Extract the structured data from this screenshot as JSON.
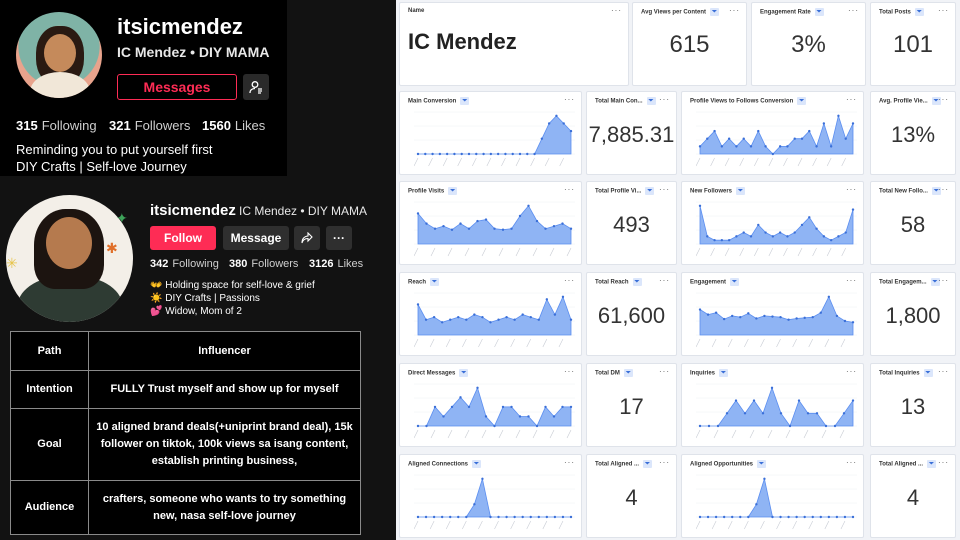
{
  "profile1": {
    "username": "itsicmendez",
    "display_name": "IC Mendez • DIY MAMA",
    "messages_label": "Messages",
    "stats": [
      {
        "count": "315",
        "label": "Following"
      },
      {
        "count": "321",
        "label": "Followers"
      },
      {
        "count": "1560",
        "label": "Likes"
      }
    ],
    "bio": [
      "Reminding you to put yourself first",
      "DIY Crafts | Self-love Journey"
    ],
    "accent": "#fe2c55"
  },
  "profile2": {
    "username": "itsicmendez",
    "display_name": "IC Mendez • DIY MAMA",
    "follow_label": "Follow",
    "message_label": "Message",
    "stats": [
      {
        "count": "342",
        "label": "Following"
      },
      {
        "count": "380",
        "label": "Followers"
      },
      {
        "count": "3126",
        "label": "Likes"
      }
    ],
    "bio": [
      "👐 Holding space for self-love & grief",
      "☀️ DIY Crafts | Passions",
      "💕 Widow, Mom of 2"
    ]
  },
  "path_table": [
    {
      "key": "Path",
      "value": "Influencer"
    },
    {
      "key": "Intention",
      "value": "FULLY Trust myself and show up for myself"
    },
    {
      "key": "Goal",
      "value": "10 aligned brand deals(+uniprint brand deal), 15k follower on tiktok, 100k views sa isang content, establish printing business,"
    },
    {
      "key": "Audience",
      "value": "crafters, someone who wants to try something new, nasa self-love journey"
    }
  ],
  "dashboard": {
    "name_card": {
      "title": "Name",
      "value": "IC Mendez"
    },
    "kpis": [
      {
        "title": "Avg Views per Content",
        "value": "615"
      },
      {
        "title": "Engagement Rate",
        "value": "3%"
      },
      {
        "title": "Total Posts",
        "value": "101"
      }
    ],
    "rows": [
      {
        "chart_title": "Main Conversion",
        "total_title": "Total Main Con...",
        "total_value": "7,885.31",
        "chart2_title": "Profile Views to Follows Conversion",
        "total2_title": "Avg. Profile Vie...",
        "total2_value": "13%"
      },
      {
        "chart_title": "Profile Visits",
        "total_title": "Total Profile Vi...",
        "total_value": "493",
        "chart2_title": "New Followers",
        "total2_title": "Total New Follo...",
        "total2_value": "58"
      },
      {
        "chart_title": "Reach",
        "total_title": "Total Reach",
        "total_value": "61,600",
        "chart2_title": "Engagement",
        "total2_title": "Total Engagem...",
        "total2_value": "1,800"
      },
      {
        "chart_title": "Direct Messages",
        "total_title": "Total DM",
        "total_value": "17",
        "chart2_title": "Inquiries",
        "total2_title": "Total Inquiries",
        "total2_value": "13"
      },
      {
        "chart_title": "Aligned Connections",
        "total_title": "Total Aligned ...",
        "total_value": "4",
        "chart2_title": "Aligned Opportunities",
        "total2_title": "Total Aligned ...",
        "total2_value": "4"
      }
    ]
  },
  "chart_data": [
    {
      "type": "area",
      "title": "Main Conversion",
      "values": [
        0,
        0,
        0,
        0,
        0,
        0,
        0,
        0,
        0,
        0,
        0,
        0,
        0,
        0,
        0,
        0,
        0,
        2,
        4,
        5,
        4,
        3
      ]
    },
    {
      "type": "area",
      "title": "Profile Views to Follows Conversion",
      "values": [
        1,
        2,
        3,
        1,
        2,
        1,
        2,
        1,
        3,
        1,
        0,
        1,
        1,
        2,
        2,
        3,
        1,
        4,
        1,
        5,
        2,
        4
      ]
    },
    {
      "type": "area",
      "title": "Profile Visits",
      "values": [
        60,
        40,
        30,
        35,
        28,
        40,
        30,
        45,
        48,
        30,
        28,
        30,
        55,
        75,
        45,
        30,
        35,
        40,
        30
      ]
    },
    {
      "type": "area",
      "title": "New Followers",
      "values": [
        10,
        2,
        1,
        1,
        1,
        2,
        3,
        2,
        5,
        3,
        2,
        3,
        2,
        3,
        5,
        7,
        4,
        2,
        1,
        2,
        3,
        9
      ]
    },
    {
      "type": "area",
      "title": "Reach",
      "values": [
        12000,
        6000,
        7000,
        5000,
        6000,
        7000,
        6000,
        8000,
        7000,
        5000,
        6000,
        7000,
        6000,
        8000,
        7000,
        6000,
        14000,
        8000,
        15000,
        6000
      ]
    },
    {
      "type": "area",
      "title": "Engagement",
      "values": [
        40,
        32,
        35,
        25,
        30,
        28,
        34,
        26,
        30,
        29,
        28,
        24,
        26,
        27,
        28,
        35,
        60,
        30,
        22,
        20
      ]
    },
    {
      "type": "area",
      "title": "Direct Messages",
      "values": [
        0,
        0,
        2,
        1,
        2,
        3,
        2,
        4,
        1,
        0,
        2,
        2,
        1,
        1,
        0,
        2,
        1,
        2,
        2
      ]
    },
    {
      "type": "area",
      "title": "Inquiries",
      "values": [
        0,
        0,
        0,
        1,
        2,
        1,
        2,
        1,
        3,
        1,
        0,
        2,
        1,
        1,
        0,
        0,
        1,
        2
      ]
    },
    {
      "type": "area",
      "title": "Aligned Connections",
      "values": [
        0,
        0,
        0,
        0,
        0,
        0,
        0,
        1,
        3,
        0,
        0,
        0,
        0,
        0,
        0,
        0,
        0,
        0,
        0,
        0
      ]
    },
    {
      "type": "area",
      "title": "Aligned Opportunities",
      "values": [
        0,
        0,
        0,
        0,
        0,
        0,
        0,
        1,
        3,
        0,
        0,
        0,
        0,
        0,
        0,
        0,
        0,
        0,
        0,
        0
      ]
    }
  ]
}
